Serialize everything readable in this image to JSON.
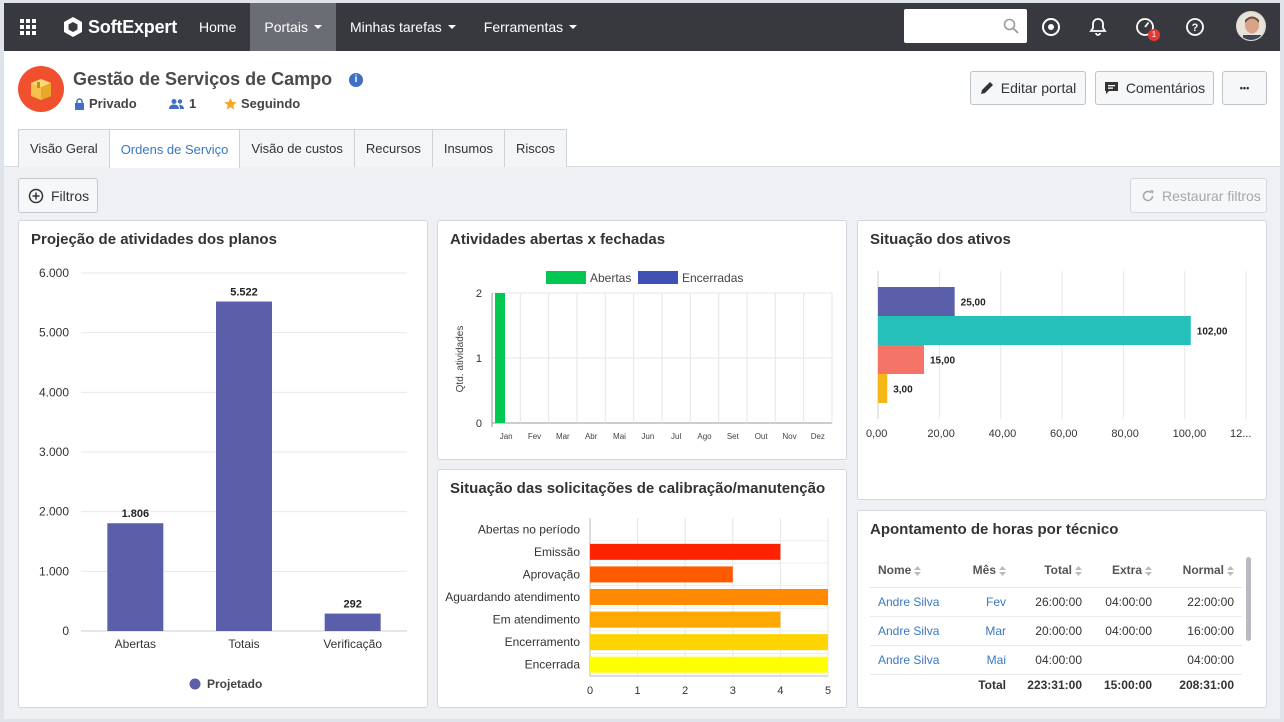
{
  "topbar": {
    "brand": "SoftExpert",
    "nav": [
      {
        "label": "Home",
        "active": false,
        "dropdown": false
      },
      {
        "label": "Portais",
        "active": true,
        "dropdown": true
      },
      {
        "label": "Minhas tarefas",
        "active": false,
        "dropdown": true
      },
      {
        "label": "Ferramentas",
        "active": false,
        "dropdown": true
      }
    ],
    "search": {
      "value": "",
      "placeholder": ""
    },
    "notifications_badge": "1",
    "icons": [
      "apps-grid-icon",
      "search-icon",
      "add-circle-icon",
      "bell-icon",
      "speedometer-icon",
      "help-icon",
      "avatar"
    ]
  },
  "portal": {
    "title": "Gestão de Serviços de Campo",
    "info_icon": "i",
    "privacy": "Privado",
    "members": "1",
    "following": "Seguindo",
    "edit_label": "Editar portal",
    "comments_label": "Comentários",
    "more_label": "•••"
  },
  "tabs": [
    {
      "label": "Visão Geral",
      "active": false
    },
    {
      "label": "Ordens de Serviço",
      "active": true
    },
    {
      "label": "Visão de custos",
      "active": false
    },
    {
      "label": "Recursos",
      "active": false
    },
    {
      "label": "Insumos",
      "active": false
    },
    {
      "label": "Riscos",
      "active": false
    }
  ],
  "toolbar": {
    "filters_label": "Filtros",
    "restore_label": "Restaurar filtros"
  },
  "colors": {
    "accent": "#3a78c4",
    "topbar": "#37393e",
    "bar_purple": "#5b5ea8",
    "green": "#00c853",
    "blue": "#3f51b5",
    "teal": "#26c0bb",
    "salmon": "#f47468",
    "amber": "#f5b718"
  },
  "panels": {
    "projecao": {
      "title": "Projeção de atividades dos planos",
      "chart_data": {
        "type": "bar",
        "categories": [
          "Abertas",
          "Totais",
          "Verificação"
        ],
        "series": [
          {
            "name": "Projetado",
            "values": [
              1806,
              5522,
              292
            ],
            "labels": [
              "1.806",
              "5.522",
              "292"
            ],
            "color": "#5b5ea8"
          }
        ],
        "yticks": [
          "0",
          "1.000",
          "2.000",
          "3.000",
          "4.000",
          "5.000",
          "6.000"
        ],
        "ylim": [
          0,
          6000
        ],
        "grid": true,
        "legend": "bottom"
      }
    },
    "abertas_fechadas": {
      "title": "Atividades abertas x fechadas",
      "chart_data": {
        "type": "bar",
        "categories": [
          "Jan",
          "Fev",
          "Mar",
          "Abr",
          "Mai",
          "Jun",
          "Jul",
          "Ago",
          "Set",
          "Out",
          "Nov",
          "Dez"
        ],
        "series": [
          {
            "name": "Abertas",
            "values": [
              2,
              0,
              0,
              0,
              0,
              0,
              0,
              0,
              0,
              0,
              0,
              0
            ],
            "color": "#00c853"
          },
          {
            "name": "Encerradas",
            "values": [
              0,
              0,
              0,
              0,
              0,
              0,
              0,
              0,
              0,
              0,
              0,
              0
            ],
            "color": "#3f51b5"
          }
        ],
        "ylabel": "Qtd. atividades",
        "yticks": [
          "0",
          "1",
          "2"
        ],
        "ylim": [
          0,
          2
        ],
        "grid": true,
        "legend": "top"
      }
    },
    "ativos": {
      "title": "Situação dos ativos",
      "chart_data": {
        "type": "bar",
        "orientation": "horizontal",
        "values": [
          25,
          102,
          15,
          3
        ],
        "labels": [
          "25,00",
          "102,00",
          "15,00",
          "3,00"
        ],
        "colors": [
          "#5b5ea8",
          "#26c0bb",
          "#f47468",
          "#f5b718"
        ],
        "xticks": [
          "0,00",
          "20,00",
          "40,00",
          "60,00",
          "80,00",
          "100,00",
          "12..."
        ],
        "xlim": [
          0,
          120
        ],
        "grid": true
      }
    },
    "calibracao": {
      "title": "Situação das solicitações de calibração/manutenção",
      "chart_data": {
        "type": "bar",
        "orientation": "horizontal",
        "categories": [
          "Abertas no período",
          "Emissão",
          "Aprovação",
          "Aguardando atendimento",
          "Em atendimento",
          "Encerramento",
          "Encerrada"
        ],
        "values": [
          0,
          4,
          3,
          5,
          4,
          5,
          5
        ],
        "colors": [
          "#ff2200",
          "#ff2200",
          "#ff5a00",
          "#ff8a00",
          "#ffa800",
          "#ffd400",
          "#ffff00"
        ],
        "xticks": [
          "0",
          "1",
          "2",
          "3",
          "4",
          "5"
        ],
        "xlim": [
          0,
          5
        ],
        "grid": true
      }
    },
    "horas": {
      "title": "Apontamento de horas por técnico",
      "columns": [
        "Nome",
        "Mês",
        "Total",
        "Extra",
        "Normal"
      ],
      "rows": [
        [
          "Andre Silva",
          "Fev",
          "26:00:00",
          "04:00:00",
          "22:00:00"
        ],
        [
          "Andre Silva",
          "Mar",
          "20:00:00",
          "04:00:00",
          "16:00:00"
        ],
        [
          "Andre Silva",
          "Mai",
          "04:00:00",
          "",
          "04:00:00"
        ]
      ],
      "total": [
        "",
        "Total",
        "223:31:00",
        "15:00:00",
        "208:31:00"
      ]
    }
  }
}
